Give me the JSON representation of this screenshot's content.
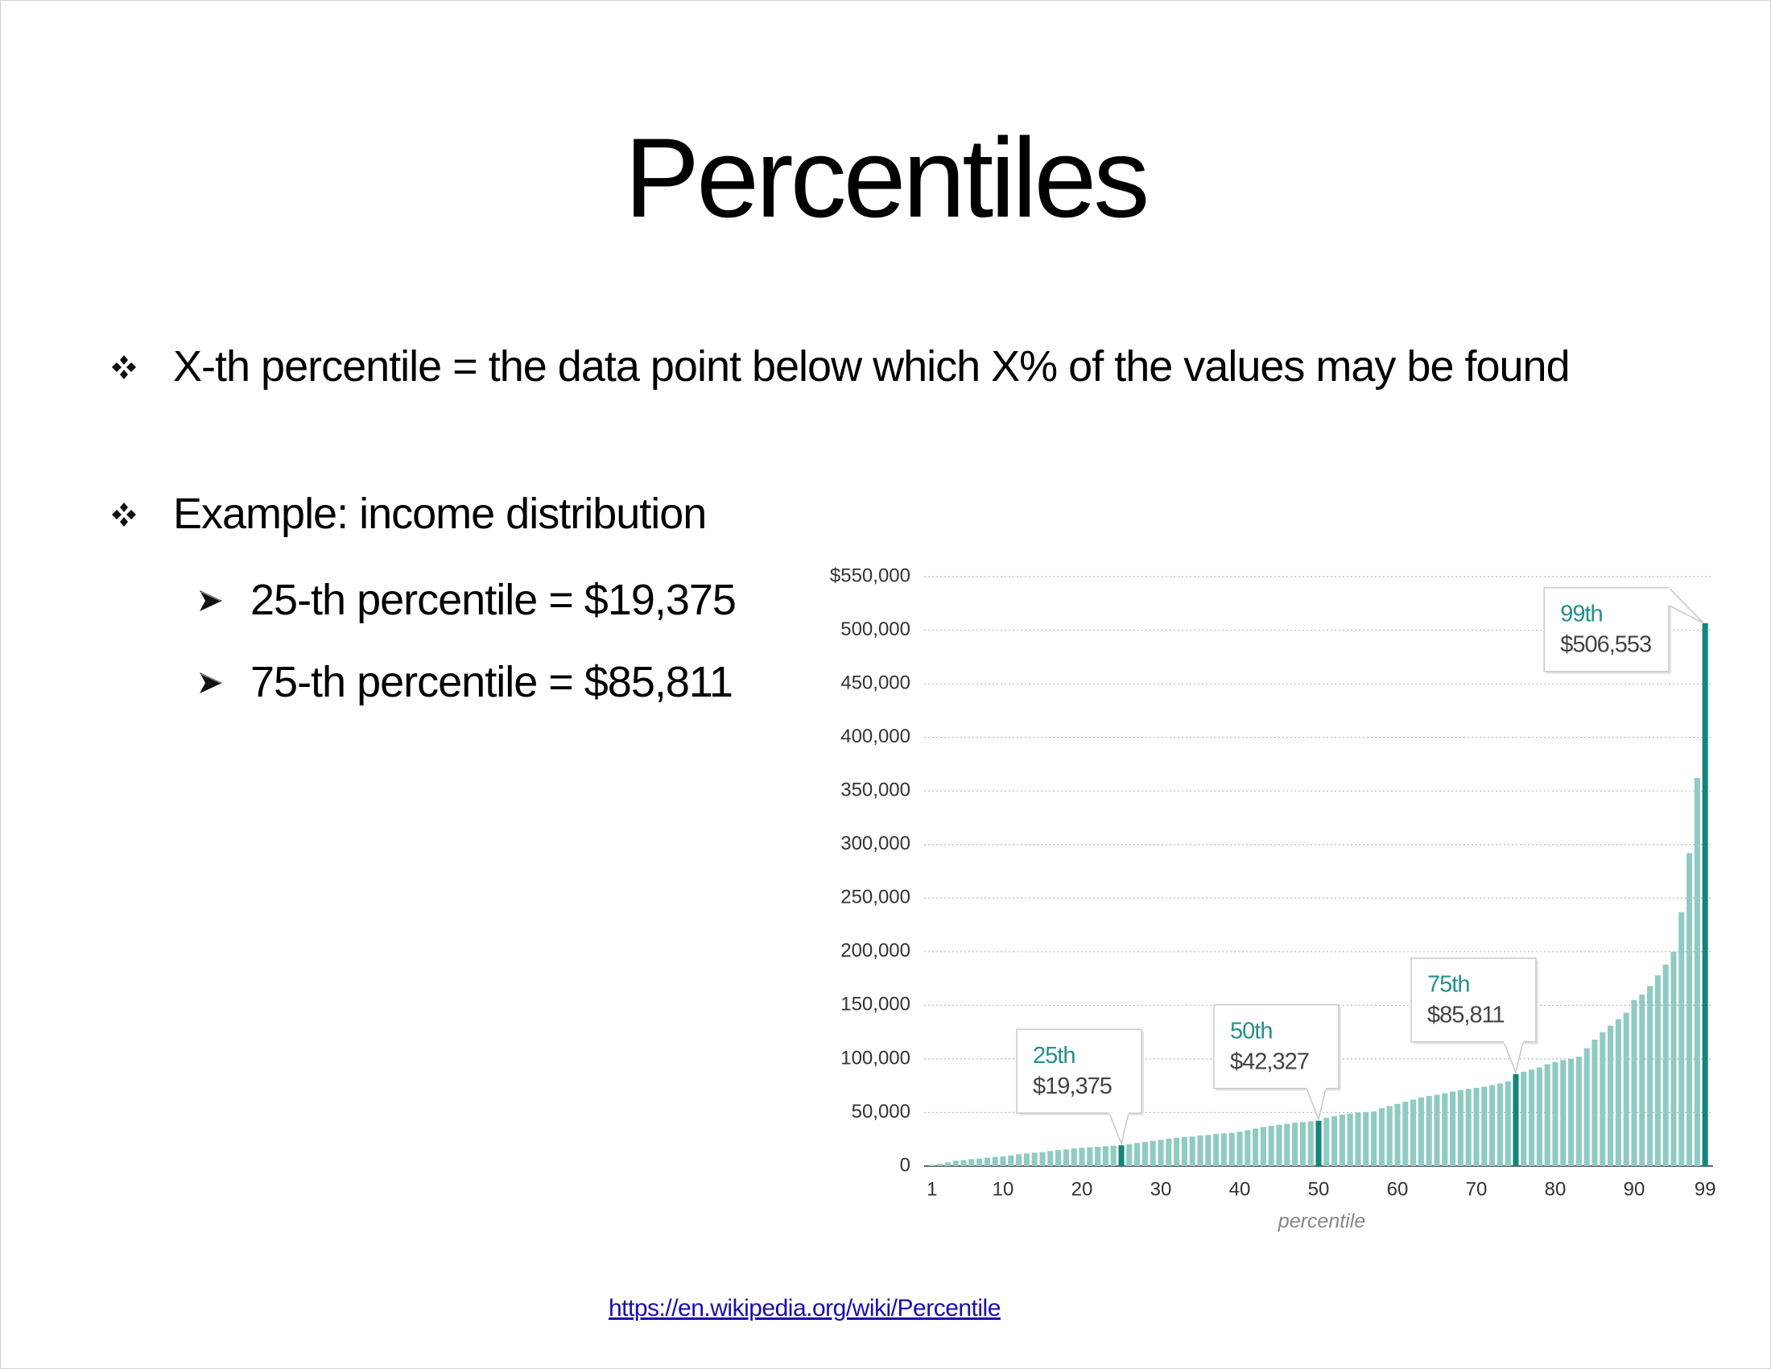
{
  "title": "Percentiles",
  "bullets": [
    {
      "text": "X-th percentile = the data point below which X% of the values may be found",
      "sub": []
    },
    {
      "text": "Example: income distribution",
      "sub": [
        "25-th percentile = $19,375",
        "75-th percentile =  $85,811"
      ]
    }
  ],
  "link": "https://en.wikipedia.org/wiki/Percentile",
  "chart_data": {
    "type": "bar",
    "x": [
      1,
      2,
      3,
      4,
      5,
      6,
      7,
      8,
      9,
      10,
      11,
      12,
      13,
      14,
      15,
      16,
      17,
      18,
      19,
      20,
      21,
      22,
      23,
      24,
      25,
      26,
      27,
      28,
      29,
      30,
      31,
      32,
      33,
      34,
      35,
      36,
      37,
      38,
      39,
      40,
      41,
      42,
      43,
      44,
      45,
      46,
      47,
      48,
      49,
      50,
      51,
      52,
      53,
      54,
      55,
      56,
      57,
      58,
      59,
      60,
      61,
      62,
      63,
      64,
      65,
      66,
      67,
      68,
      69,
      70,
      71,
      72,
      73,
      74,
      75,
      76,
      77,
      78,
      79,
      80,
      81,
      82,
      83,
      84,
      85,
      86,
      87,
      88,
      89,
      90,
      91,
      92,
      93,
      94,
      95,
      96,
      97,
      98,
      99
    ],
    "values": [
      1000,
      2000,
      3500,
      5000,
      5500,
      6500,
      7000,
      7800,
      8500,
      9000,
      10000,
      11000,
      11800,
      12500,
      13000,
      14000,
      15000,
      15500,
      16500,
      17000,
      17500,
      18000,
      18500,
      19000,
      19375,
      20500,
      21500,
      22500,
      23500,
      24500,
      25500,
      26500,
      27000,
      27500,
      28500,
      29000,
      30000,
      30500,
      31000,
      32000,
      33500,
      35000,
      36500,
      37500,
      38500,
      39500,
      40500,
      41000,
      41800,
      42327,
      45000,
      46500,
      48000,
      49000,
      50000,
      50500,
      51000,
      54000,
      56000,
      58000,
      60000,
      62000,
      64000,
      65500,
      66500,
      68000,
      69500,
      71000,
      72000,
      73000,
      74000,
      75500,
      77000,
      79000,
      85811,
      88000,
      90000,
      92000,
      95000,
      97000,
      99000,
      100000,
      102000,
      110000,
      118000,
      125000,
      131000,
      137000,
      143000,
      155000,
      160000,
      168000,
      178000,
      188000,
      200000,
      237000,
      292000,
      362000,
      506553
    ],
    "color": "#8fcbc2",
    "highlight_color": "#15857b",
    "xlim": [
      0,
      100
    ],
    "xticks": [
      1,
      10,
      20,
      30,
      40,
      50,
      60,
      70,
      80,
      90,
      99
    ],
    "xlabel": "percentile",
    "ylim": [
      0,
      550000
    ],
    "yticks": [
      0,
      {
        "value": 50000,
        "label": "50,000"
      },
      {
        "value": 100000,
        "label": "100,000"
      },
      {
        "value": 150000,
        "label": "150,000"
      },
      {
        "value": 200000,
        "label": "200,000"
      },
      {
        "value": 250000,
        "label": "250,000"
      },
      {
        "value": 300000,
        "label": "300,000"
      },
      {
        "value": 350000,
        "label": "350,000"
      },
      {
        "value": 400000,
        "label": "400,000"
      },
      {
        "value": 450000,
        "label": "450,000"
      },
      {
        "value": 500000,
        "label": "500,000"
      },
      {
        "value": 550000,
        "label": "$550,000"
      }
    ],
    "grid": true,
    "annotations": [
      {
        "x": 25,
        "label": "25th",
        "value_label": "$19,375"
      },
      {
        "x": 50,
        "label": "50th",
        "value_label": "$42,327"
      },
      {
        "x": 75,
        "label": "75th",
        "value_label": "$85,811"
      },
      {
        "x": 99,
        "label": "99th",
        "value_label": "$506,553"
      }
    ]
  }
}
